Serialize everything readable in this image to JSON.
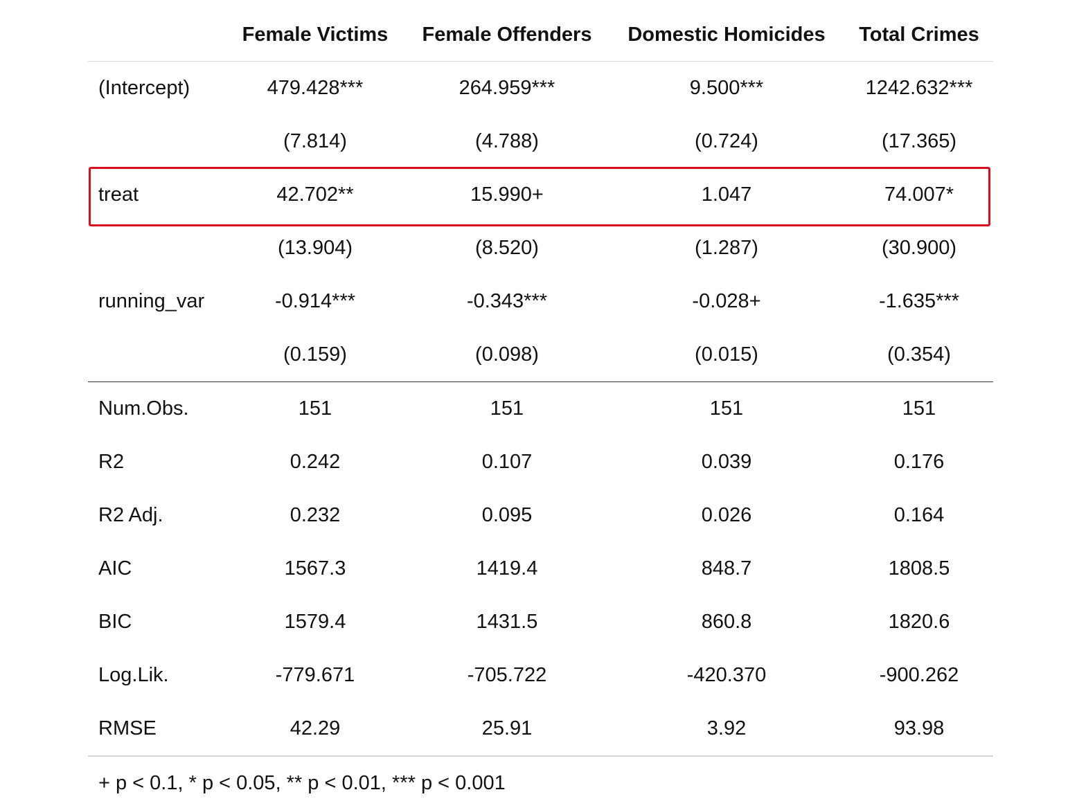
{
  "table": {
    "headers": [
      "",
      "Female Victims",
      "Female Offenders",
      "Domestic Homicides",
      "Total Crimes"
    ],
    "coef_rows": [
      {
        "label": "(Intercept)",
        "values": [
          "479.428***",
          "264.959***",
          "9.500***",
          "1242.632***"
        ]
      },
      {
        "label": "",
        "values": [
          "(7.814)",
          "(4.788)",
          "(0.724)",
          "(17.365)"
        ]
      },
      {
        "label": "treat",
        "values": [
          "42.702**",
          "15.990+",
          "1.047",
          "74.007*"
        ]
      },
      {
        "label": "",
        "values": [
          "(13.904)",
          "(8.520)",
          "(1.287)",
          "(30.900)"
        ]
      },
      {
        "label": "running_var",
        "values": [
          "-0.914***",
          "-0.343***",
          "-0.028+",
          "-1.635***"
        ]
      },
      {
        "label": "",
        "values": [
          "(0.159)",
          "(0.098)",
          "(0.015)",
          "(0.354)"
        ]
      }
    ],
    "stat_rows": [
      {
        "label": "Num.Obs.",
        "values": [
          "151",
          "151",
          "151",
          "151"
        ]
      },
      {
        "label": "R2",
        "values": [
          "0.242",
          "0.107",
          "0.039",
          "0.176"
        ]
      },
      {
        "label": "R2 Adj.",
        "values": [
          "0.232",
          "0.095",
          "0.026",
          "0.164"
        ]
      },
      {
        "label": "AIC",
        "values": [
          "1567.3",
          "1419.4",
          "848.7",
          "1808.5"
        ]
      },
      {
        "label": "BIC",
        "values": [
          "1579.4",
          "1431.5",
          "860.8",
          "1820.6"
        ]
      },
      {
        "label": "Log.Lik.",
        "values": [
          "-779.671",
          "-705.722",
          "-420.370",
          "-900.262"
        ]
      },
      {
        "label": "RMSE",
        "values": [
          "42.29",
          "25.91",
          "3.92",
          "93.98"
        ]
      }
    ],
    "footnote": "+ p < 0.1, * p < 0.05, ** p < 0.01, *** p < 0.001"
  },
  "highlight": {
    "row": "treat",
    "color": "#d6101c"
  }
}
